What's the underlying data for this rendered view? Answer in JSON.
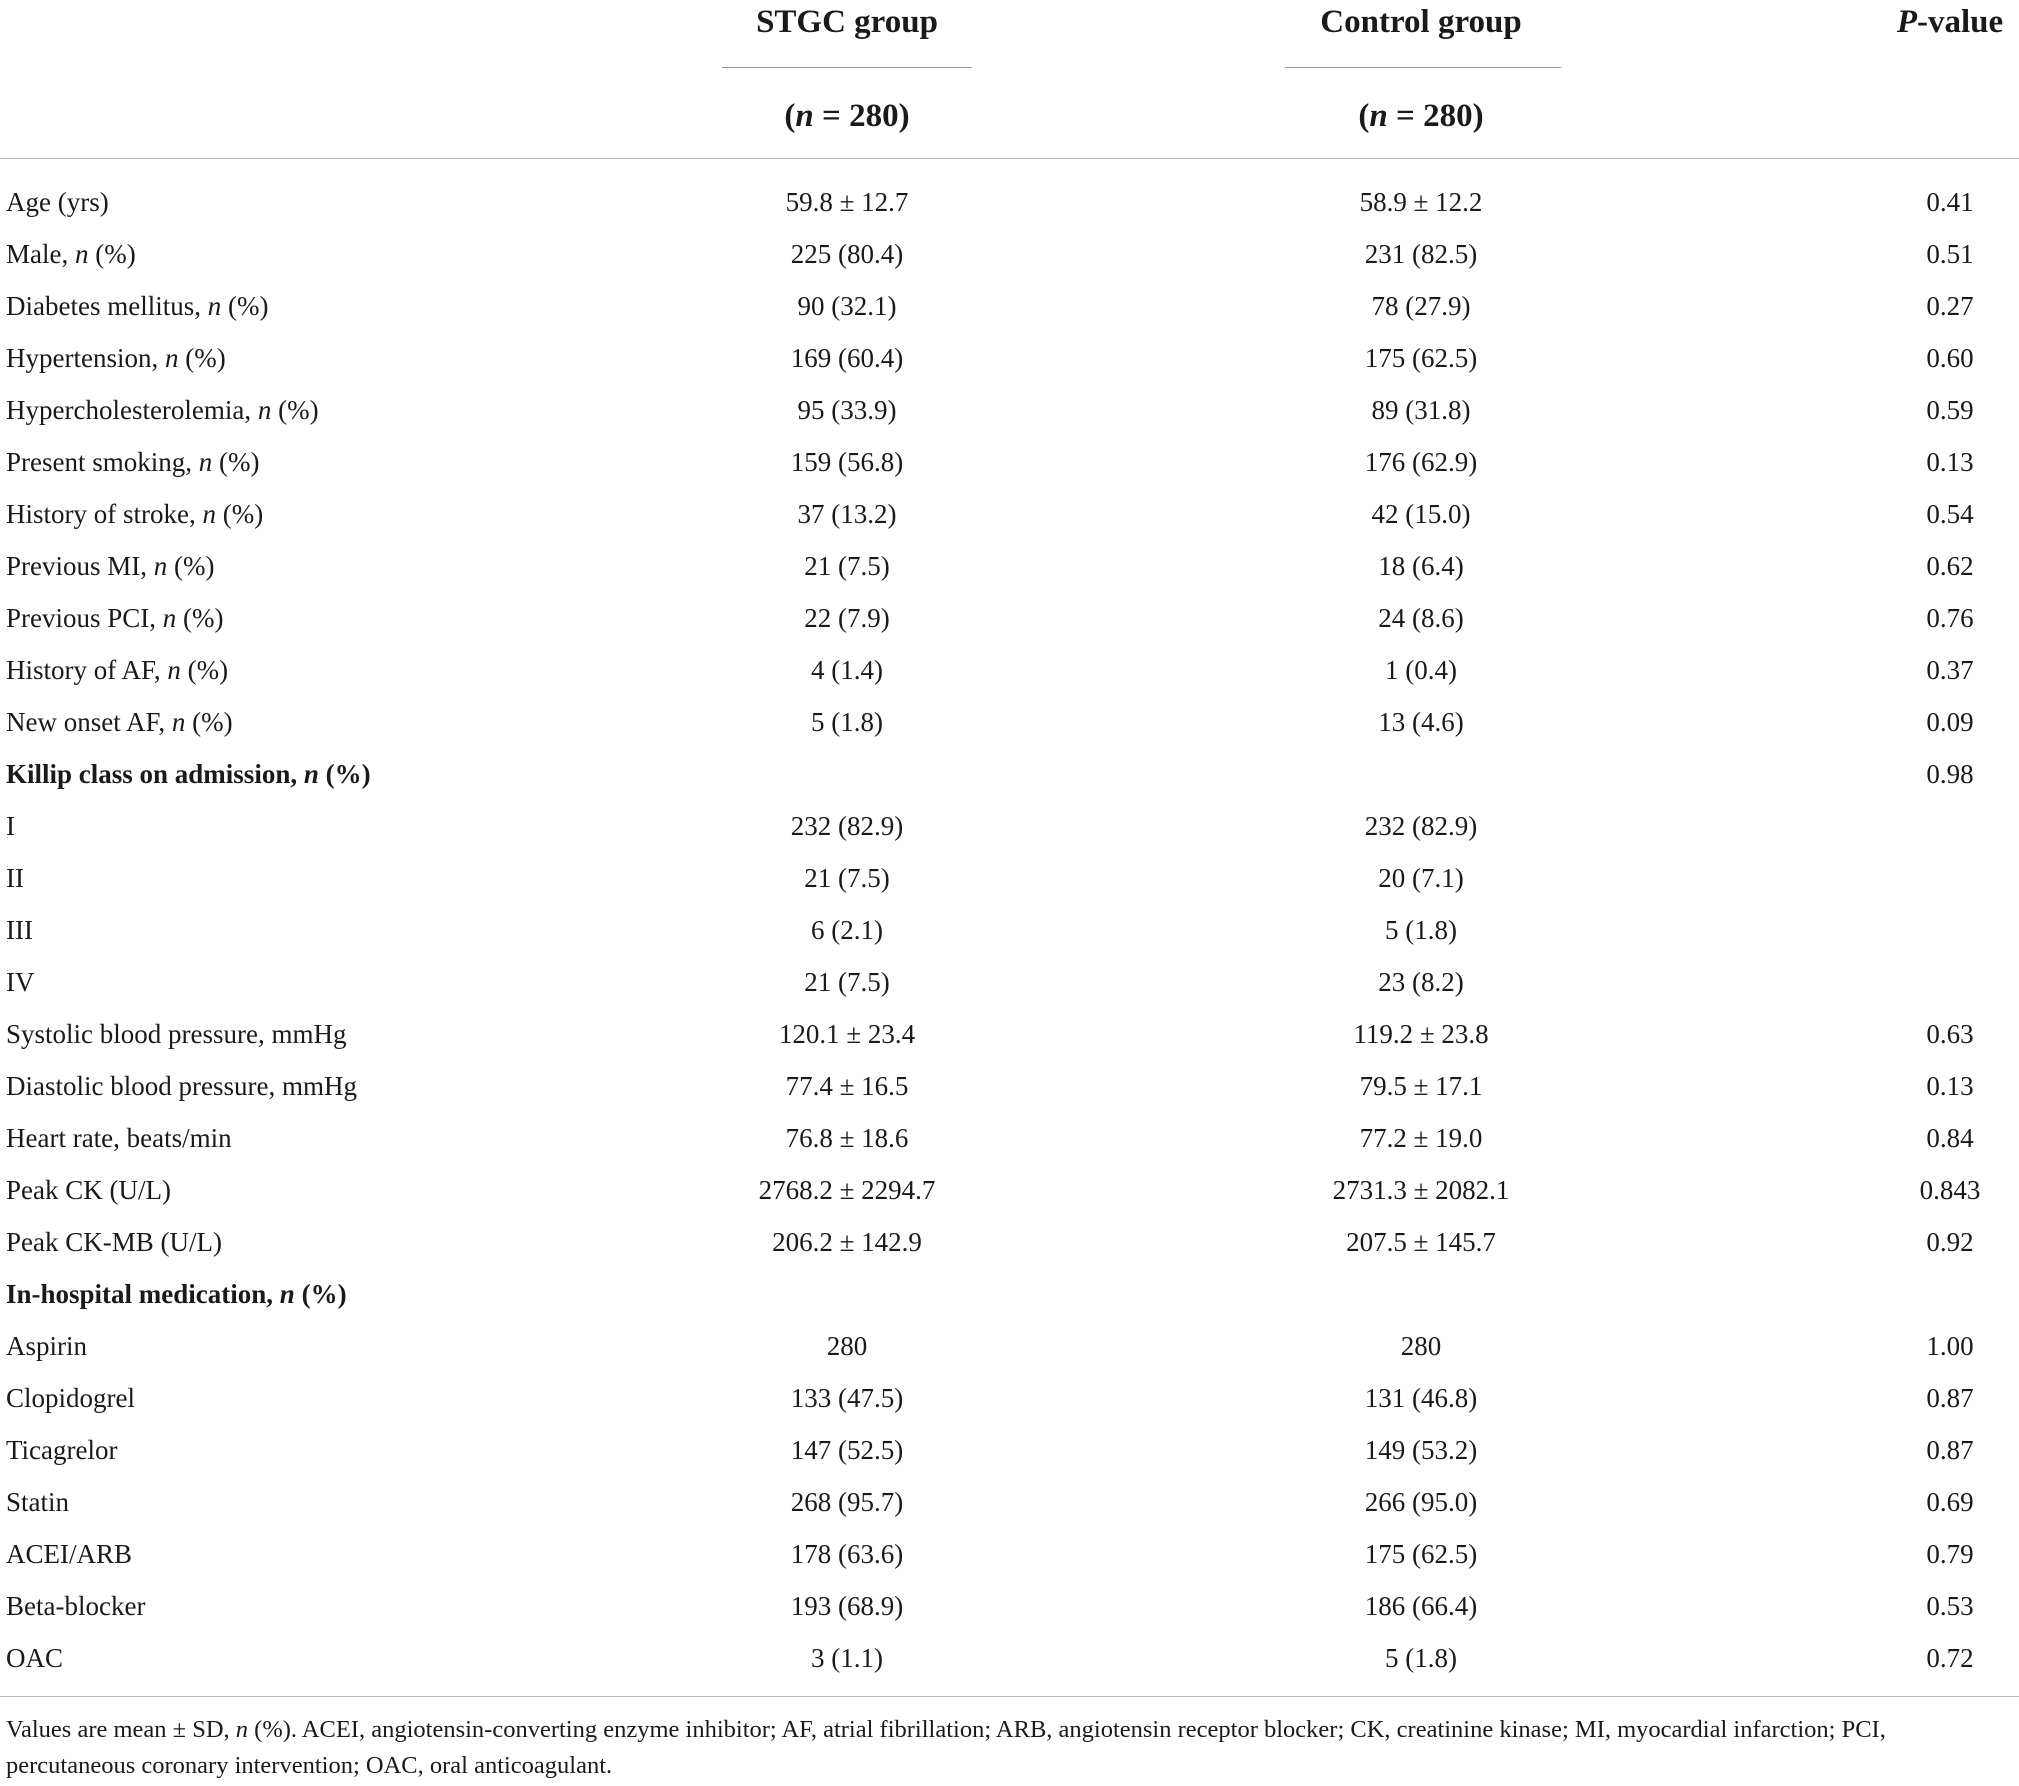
{
  "header": {
    "col1_title": "STGC group",
    "col1_n": "(n = 280)",
    "col2_title": "Control group",
    "col2_n": "(n = 280)",
    "col3_title": "P-value"
  },
  "rows": [
    {
      "label": "Age (yrs)",
      "stgc": "59.8 ± 12.7",
      "control": "58.9 ± 12.2",
      "p": "0.41"
    },
    {
      "label": "Male, n (%)",
      "stgc": "225 (80.4)",
      "control": "231 (82.5)",
      "p": "0.51"
    },
    {
      "label": "Diabetes mellitus, n (%)",
      "stgc": "90 (32.1)",
      "control": "78 (27.9)",
      "p": "0.27"
    },
    {
      "label": "Hypertension, n (%)",
      "stgc": "169 (60.4)",
      "control": "175 (62.5)",
      "p": "0.60"
    },
    {
      "label": "Hypercholesterolemia, n (%)",
      "stgc": "95 (33.9)",
      "control": "89 (31.8)",
      "p": "0.59"
    },
    {
      "label": "Present smoking, n (%)",
      "stgc": "159 (56.8)",
      "control": "176 (62.9)",
      "p": "0.13"
    },
    {
      "label": "History of stroke, n (%)",
      "stgc": "37 (13.2)",
      "control": "42 (15.0)",
      "p": "0.54"
    },
    {
      "label": "Previous MI, n (%)",
      "stgc": "21 (7.5)",
      "control": "18 (6.4)",
      "p": "0.62"
    },
    {
      "label": "Previous PCI, n (%)",
      "stgc": "22 (7.9)",
      "control": "24 (8.6)",
      "p": "0.76"
    },
    {
      "label": "History of AF, n (%)",
      "stgc": "4 (1.4)",
      "control": "1 (0.4)",
      "p": "0.37"
    },
    {
      "label": "New onset AF, n (%)",
      "stgc": "5 (1.8)",
      "control": "13 (4.6)",
      "p": "0.09"
    },
    {
      "label": "Killip class on admission, n (%)",
      "stgc": "",
      "control": "",
      "p": "0.98",
      "section": true
    },
    {
      "label": "I",
      "stgc": "232 (82.9)",
      "control": "232 (82.9)",
      "p": ""
    },
    {
      "label": "II",
      "stgc": "21 (7.5)",
      "control": "20 (7.1)",
      "p": ""
    },
    {
      "label": "III",
      "stgc": "6 (2.1)",
      "control": "5 (1.8)",
      "p": ""
    },
    {
      "label": "IV",
      "stgc": "21 (7.5)",
      "control": "23 (8.2)",
      "p": ""
    },
    {
      "label": "Systolic blood pressure, mmHg",
      "stgc": "120.1 ± 23.4",
      "control": "119.2 ± 23.8",
      "p": "0.63"
    },
    {
      "label": "Diastolic blood pressure, mmHg",
      "stgc": "77.4 ± 16.5",
      "control": "79.5 ± 17.1",
      "p": "0.13"
    },
    {
      "label": "Heart rate, beats/min",
      "stgc": "76.8 ± 18.6",
      "control": "77.2 ± 19.0",
      "p": "0.84"
    },
    {
      "label": "Peak CK (U/L)",
      "stgc": "2768.2 ± 2294.7",
      "control": "2731.3 ± 2082.1",
      "p": "0.843"
    },
    {
      "label": "Peak CK-MB (U/L)",
      "stgc": "206.2 ± 142.9",
      "control": "207.5 ± 145.7",
      "p": "0.92"
    },
    {
      "label": "In-hospital medication, n (%)",
      "stgc": "",
      "control": "",
      "p": "",
      "section": true
    },
    {
      "label": "Aspirin",
      "stgc": "280",
      "control": "280",
      "p": "1.00"
    },
    {
      "label": "Clopidogrel",
      "stgc": "133 (47.5)",
      "control": "131 (46.8)",
      "p": "0.87"
    },
    {
      "label": "Ticagrelor",
      "stgc": "147 (52.5)",
      "control": "149 (53.2)",
      "p": "0.87"
    },
    {
      "label": "Statin",
      "stgc": "268 (95.7)",
      "control": "266 (95.0)",
      "p": "0.69"
    },
    {
      "label": "ACEI/ARB",
      "stgc": "178 (63.6)",
      "control": "175 (62.5)",
      "p": "0.79"
    },
    {
      "label": "Beta-blocker",
      "stgc": "193 (68.9)",
      "control": "186 (66.4)",
      "p": "0.53"
    },
    {
      "label": "OAC",
      "stgc": "3 (1.1)",
      "control": "5 (1.8)",
      "p": "0.72"
    }
  ],
  "footnote": "Values are mean ± SD, n (%). ACEI, angiotensin-converting enzyme inhibitor; AF, atrial fibrillation; ARB, angiotensin receptor blocker; CK, creatinine kinase; MI, myocardial infarction; PCI, percutaneous coronary intervention; OAC, oral anticoagulant."
}
